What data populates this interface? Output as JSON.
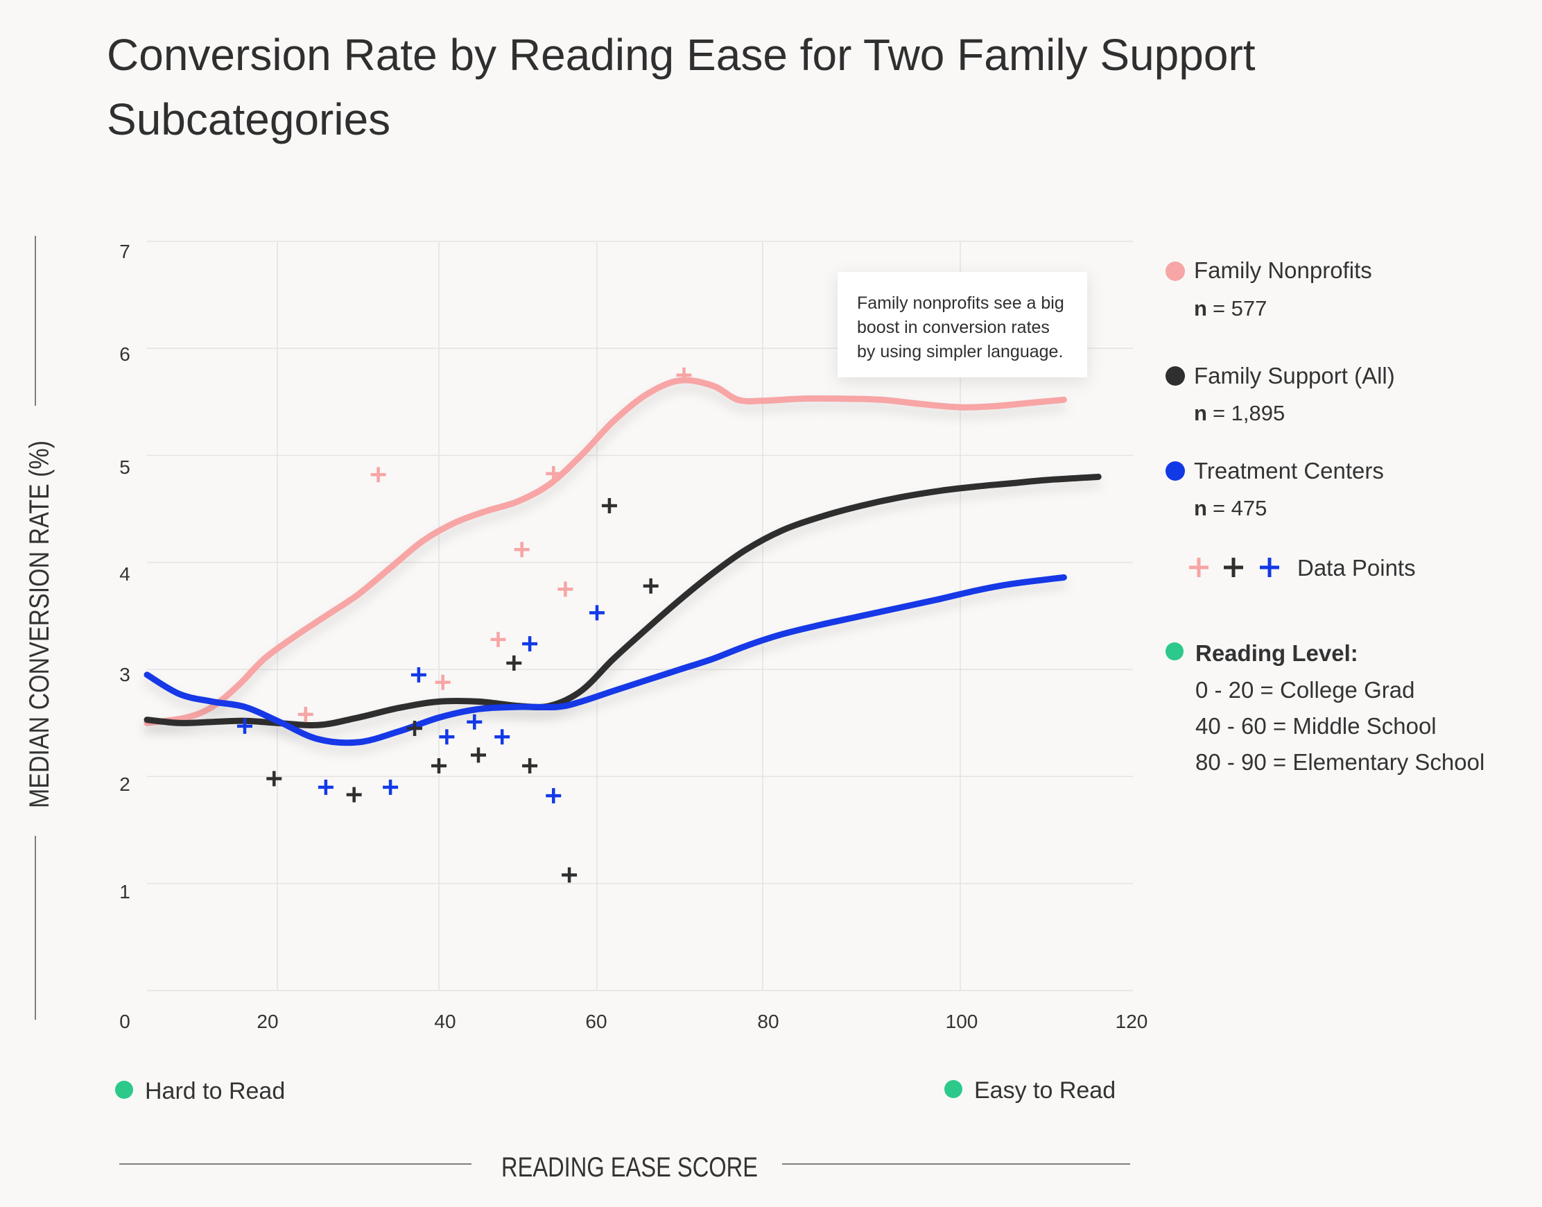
{
  "chart_data": {
    "type": "line",
    "title_lines": [
      "Conversion Rate by Reading Ease for Two Family Support",
      "Subcategories"
    ],
    "xlabel": "READING EASE SCORE",
    "ylabel": "MEDIAN CONVERSION RATE (%)",
    "xlim": [
      0,
      120
    ],
    "ylim": [
      0,
      7
    ],
    "x_tick_labels": [
      "0",
      "20",
      "40",
      "60",
      "80",
      "100",
      "120"
    ],
    "y_tick_labels": [
      "1",
      "2",
      "3",
      "4",
      "5",
      "6",
      "7"
    ],
    "series": [
      {
        "name": "Family Nonprofits",
        "n_label": "n",
        "n_value": "= 577",
        "color": "#f7a5a5",
        "x": [
          0,
          6,
          10,
          14,
          18,
          22,
          26,
          30,
          34,
          38,
          42,
          46,
          50,
          54,
          58,
          62,
          66,
          70,
          74,
          77,
          80,
          84,
          88,
          92,
          96,
          100,
          104,
          108,
          112
        ],
        "values": [
          2.5,
          2.55,
          2.65,
          2.85,
          3.1,
          3.3,
          3.5,
          3.7,
          3.95,
          4.2,
          4.37,
          4.48,
          4.57,
          4.73,
          5.0,
          5.32,
          5.57,
          5.7,
          5.65,
          5.52,
          5.51,
          5.53,
          5.53,
          5.52,
          5.48,
          5.45,
          5.46,
          5.49,
          5.52
        ]
      },
      {
        "name": "Family Support (All)",
        "n_label": "n",
        "n_value": "= 1,895",
        "color": "#2f2f2f",
        "x": [
          0,
          5,
          10,
          15,
          20,
          25,
          30,
          35,
          40,
          45,
          50,
          54,
          58,
          62,
          66,
          70,
          74,
          78,
          82,
          86,
          90,
          94,
          98,
          102,
          106,
          110,
          116
        ],
        "values": [
          2.53,
          2.5,
          2.51,
          2.52,
          2.5,
          2.48,
          2.55,
          2.64,
          2.7,
          2.7,
          2.66,
          2.66,
          2.8,
          3.1,
          3.38,
          3.65,
          3.9,
          4.12,
          4.3,
          4.43,
          4.53,
          4.61,
          4.67,
          4.71,
          4.74,
          4.77,
          4.8
        ]
      },
      {
        "name": "Treatment Centers",
        "n_label": "n",
        "n_value": "= 475",
        "color": "#1239e6",
        "x": [
          0,
          5,
          10,
          15,
          20,
          25,
          30,
          35,
          40,
          45,
          50,
          55,
          58,
          62,
          66,
          70,
          74,
          78,
          82,
          86,
          90,
          94,
          98,
          102,
          106,
          112
        ],
        "values": [
          2.95,
          2.77,
          2.7,
          2.65,
          2.52,
          2.35,
          2.32,
          2.42,
          2.55,
          2.63,
          2.65,
          2.65,
          2.7,
          2.8,
          2.9,
          3.0,
          3.1,
          3.22,
          3.33,
          3.42,
          3.5,
          3.58,
          3.66,
          3.74,
          3.8,
          3.86
        ]
      }
    ],
    "scatter": [
      {
        "name": "Family Nonprofits",
        "color": "#f7a5a5",
        "points": [
          [
            32.5,
            4.82
          ],
          [
            23.5,
            2.58
          ],
          [
            40.5,
            2.88
          ],
          [
            47.5,
            3.28
          ],
          [
            50.5,
            4.12
          ],
          [
            54.5,
            4.83
          ],
          [
            56,
            3.75
          ],
          [
            70.5,
            5.75
          ]
        ]
      },
      {
        "name": "Family Support (All)",
        "color": "#2f2f2f",
        "points": [
          [
            19.5,
            1.98
          ],
          [
            29.5,
            1.83
          ],
          [
            37,
            2.45
          ],
          [
            40,
            2.1
          ],
          [
            45,
            2.2
          ],
          [
            49.5,
            3.06
          ],
          [
            51.5,
            2.1
          ],
          [
            56.5,
            1.08
          ],
          [
            61.5,
            4.53
          ],
          [
            66.5,
            3.78
          ]
        ]
      },
      {
        "name": "Treatment Centers",
        "color": "#1239e6",
        "points": [
          [
            15,
            2.47
          ],
          [
            26,
            1.9
          ],
          [
            34,
            1.9
          ],
          [
            37.5,
            2.95
          ],
          [
            41,
            2.37
          ],
          [
            44.5,
            2.51
          ],
          [
            48,
            2.37
          ],
          [
            51.5,
            3.24
          ],
          [
            54.5,
            1.82
          ],
          [
            60,
            3.53
          ]
        ]
      }
    ],
    "annotation": [
      "Family nonprofits see a big",
      "boost in conversion rates",
      "by using simpler language."
    ],
    "legend_position": "right",
    "grid": true
  },
  "legend_extra": {
    "data_points_label": "Data Points",
    "reading_level_title": "Reading Level:",
    "reading_levels": [
      "0 - 20 = College Grad",
      "40 - 60 = Middle School",
      "80 - 90 = Elementary School"
    ]
  },
  "ease_labels": {
    "hard": "Hard to Read",
    "easy": "Easy to Read"
  },
  "colors": {
    "accent_green": "#2cc98a",
    "background": "#f9f8f7",
    "grid": "#e4e3e1"
  }
}
